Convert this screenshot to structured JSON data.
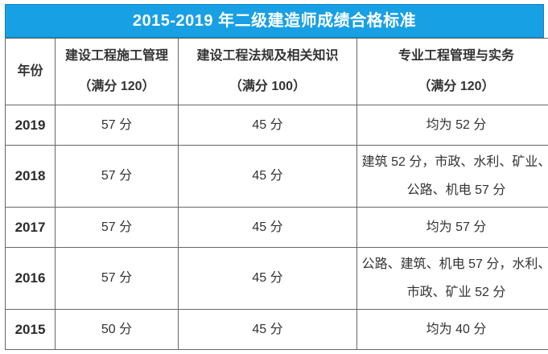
{
  "title": "2015-2019 年二级建造师成绩合格标准",
  "colors": {
    "title_bg": "#18a0e4",
    "title_border": "#0d84c0",
    "title_text": "#ffffff",
    "table_border": "#666666",
    "cell_text": "#333333"
  },
  "table": {
    "columns": [
      {
        "label": "年份",
        "sub": ""
      },
      {
        "label": "建设工程施工管理",
        "sub": "（满分 120）"
      },
      {
        "label": "建设工程法规及相关知识",
        "sub": "（满分 100）"
      },
      {
        "label": "专业工程管理与实务",
        "sub": "（满分 120）"
      }
    ],
    "rows": [
      {
        "year": "2019",
        "management": "57 分",
        "regulations": "45 分",
        "practice": "均为 52 分"
      },
      {
        "year": "2018",
        "management": "57 分",
        "regulations": "45 分",
        "practice": "建筑 52 分，市政、水利、矿业、公路、机电 57 分"
      },
      {
        "year": "2017",
        "management": "57 分",
        "regulations": "45 分",
        "practice": "均为 57 分"
      },
      {
        "year": "2016",
        "management": "57 分",
        "regulations": "45 分",
        "practice": "公路、建筑、机电 57 分，水利、市政、矿业 52 分"
      },
      {
        "year": "2015",
        "management": "50 分",
        "regulations": "45 分",
        "practice": "均为 40 分"
      }
    ]
  },
  "chart_data": {
    "type": "table",
    "title": "2015-2019 年二级建造师成绩合格标准",
    "columns": [
      "年份",
      "建设工程施工管理（满分 120）",
      "建设工程法规及相关知识（满分 100）",
      "专业工程管理与实务（满分 120）"
    ],
    "rows": [
      [
        "2019",
        "57 分",
        "45 分",
        "均为 52 分"
      ],
      [
        "2018",
        "57 分",
        "45 分",
        "建筑 52 分，市政、水利、矿业、公路、机电 57 分"
      ],
      [
        "2017",
        "57 分",
        "45 分",
        "均为 57 分"
      ],
      [
        "2016",
        "57 分",
        "45 分",
        "公路、建筑、机电 57 分，水利、市政、矿业 52 分"
      ],
      [
        "2015",
        "50 分",
        "45 分",
        "均为 40 分"
      ]
    ]
  }
}
